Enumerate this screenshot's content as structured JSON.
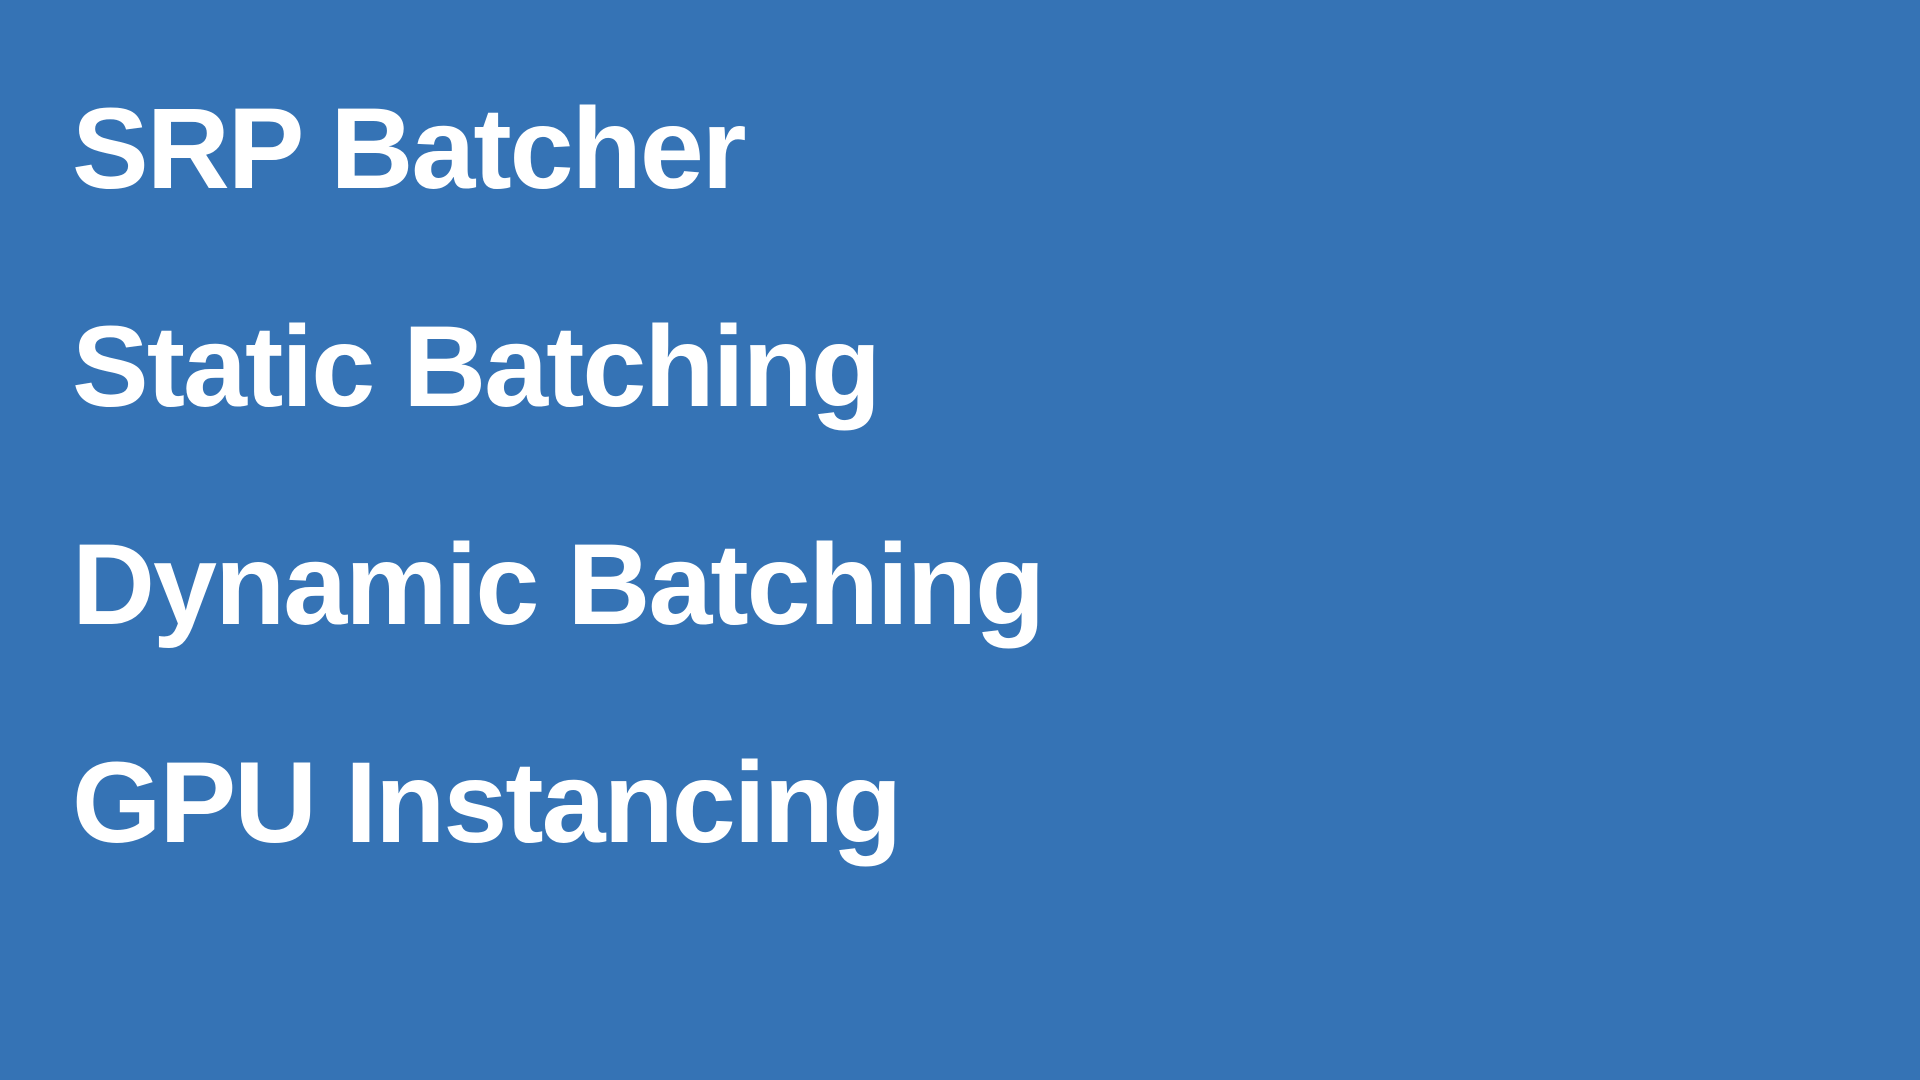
{
  "slide": {
    "background_color": "#3573b5",
    "text_color": "#ffffff",
    "items": [
      "SRP Batcher",
      "Static Batching",
      "Dynamic Batching",
      "GPU Instancing"
    ]
  }
}
